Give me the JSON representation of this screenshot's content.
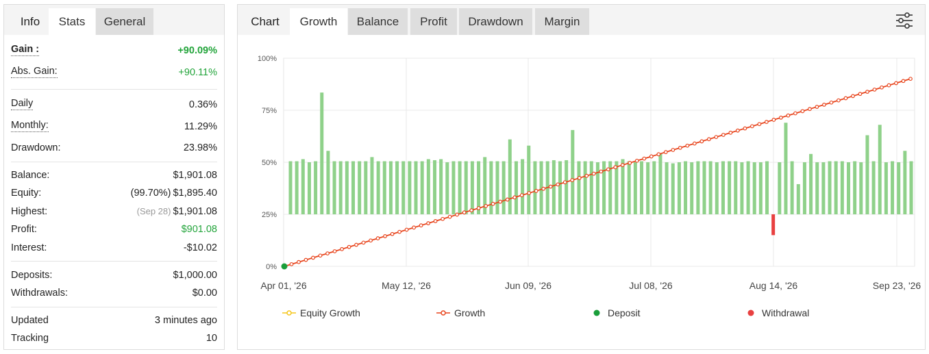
{
  "left_tabs": [
    "Info",
    "Stats",
    "General"
  ],
  "right_tabs": [
    "Chart",
    "Growth",
    "Balance",
    "Profit",
    "Drawdown",
    "Margin"
  ],
  "stats": {
    "gain": {
      "label": "Gain :",
      "value": "+90.09%"
    },
    "abs_gain": {
      "label": "Abs. Gain:",
      "value": "+90.11%"
    },
    "daily": {
      "label": "Daily",
      "value": "0.36%"
    },
    "monthly": {
      "label": "Monthly:",
      "value": "11.29%"
    },
    "drawdown": {
      "label": "Drawdown:",
      "value": "23.98%"
    },
    "balance": {
      "label": "Balance:",
      "value": "$1,901.08"
    },
    "equity": {
      "label": "Equity:",
      "note": "(99.70%)",
      "value": "$1,895.40"
    },
    "highest": {
      "label": "Highest:",
      "note": "(Sep 28)",
      "value": "$1,901.08"
    },
    "profit": {
      "label": "Profit:",
      "value": "$901.08"
    },
    "interest": {
      "label": "Interest:",
      "value": "-$10.02"
    },
    "deposits": {
      "label": "Deposits:",
      "value": "$1,000.00"
    },
    "withdrawals": {
      "label": "Withdrawals:",
      "value": "$0.00"
    },
    "updated": {
      "label": "Updated",
      "value": "3 minutes ago"
    },
    "tracking": {
      "label": "Tracking",
      "value": "10"
    }
  },
  "icons": {
    "settings": "sliders-icon"
  },
  "colors": {
    "growth_line": "#e8441c",
    "equity_line": "#f5c518",
    "bars": "#8fd18a",
    "withdrawal": "#e84040",
    "deposit": "#1a9e3a",
    "positive": "#22a43a"
  },
  "chart_data": {
    "type": "line",
    "y_ticks": [
      "0%",
      "25%",
      "50%",
      "75%",
      "100%"
    ],
    "ylim": [
      0,
      100
    ],
    "x_ticks": [
      "Apr 01, '26",
      "May 12, '26",
      "Jun 09, '26",
      "Jul 08, '26",
      "Aug 14, '26",
      "Sep 23, '26"
    ],
    "legend": [
      "Equity Growth",
      "Growth",
      "Deposit",
      "Withdrawal"
    ],
    "growth_start": 0,
    "growth_end": 90.09,
    "growth_points": 88,
    "deposit": {
      "x": 0,
      "y": 0
    },
    "bar_baseline": 25,
    "bars_daily_pct": [
      50.5,
      50.5,
      51.5,
      50,
      50.5,
      83.5,
      55.5,
      50.5,
      50.5,
      50.5,
      50.5,
      50.5,
      50.5,
      52.5,
      50.5,
      50.5,
      50.5,
      50.5,
      50.5,
      50.5,
      50.5,
      50.5,
      51.5,
      51,
      51.5,
      50,
      50.5,
      50.5,
      50.5,
      50.5,
      50.5,
      52.5,
      50.5,
      50.5,
      50.5,
      61,
      50.5,
      51.5,
      58,
      50.5,
      50.5,
      50.5,
      51,
      50.5,
      51,
      65.5,
      50.5,
      50.5,
      50.5,
      50,
      50.5,
      50.5,
      50.5,
      51.5,
      50.5,
      50,
      50.5,
      50,
      50.5,
      54,
      50,
      49.5,
      50,
      50.5,
      50,
      50.5,
      50.5,
      50.5,
      50,
      50.5,
      50.5,
      50.5,
      50,
      50.5,
      50,
      50,
      50.5,
      15,
      50,
      69,
      50.5,
      39.5,
      50,
      54,
      50,
      50,
      50.5,
      50.5,
      50.5,
      50,
      50.5,
      50,
      63,
      50.5,
      68,
      50,
      50.5,
      50,
      55.5,
      50.5
    ]
  }
}
